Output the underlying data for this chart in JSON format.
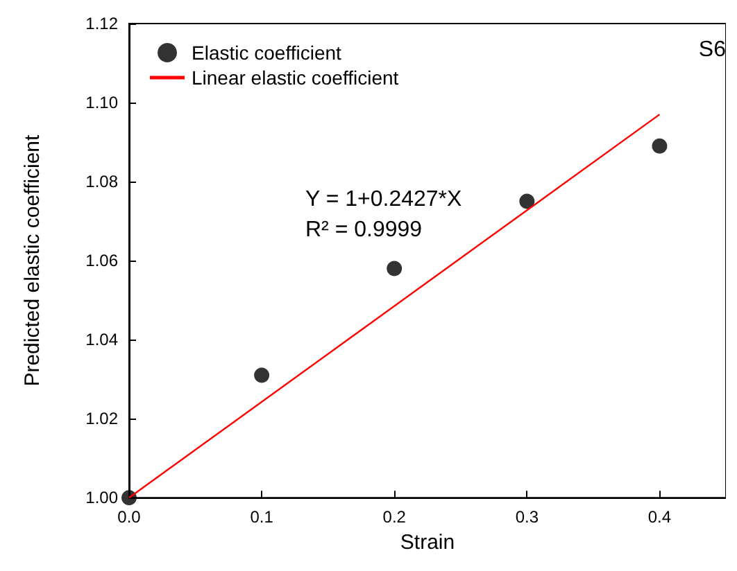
{
  "chart_data": {
    "type": "scatter",
    "xlabel": "Strain",
    "ylabel": "Predicted elastic coefficient",
    "series": [
      {
        "name": "Elastic coefficient",
        "marker": "circle",
        "color": "#000000",
        "x": [
          0,
          0.1,
          0.2,
          0.3,
          0.4
        ],
        "values": [
          1.0,
          1.031,
          1.058,
          1.075,
          1.089
        ]
      },
      {
        "name": "Linear elastic coefficient",
        "type": "line",
        "color": "#ff0000",
        "x": [
          0,
          0.4
        ],
        "values": [
          1.0,
          1.097
        ]
      }
    ],
    "xlim": [
      0,
      0.45
    ],
    "xticks": [
      {
        "value": 0,
        "label": "0.0"
      },
      0.1,
      0.2,
      0.3,
      0.4
    ],
    "ylim": [
      1.0,
      1.12
    ],
    "yticks": [
      {
        "value": 1.0,
        "label": "1.00"
      },
      1.02,
      1.04,
      1.06,
      1.08,
      {
        "value": 1.1,
        "label": "1.10"
      },
      1.12
    ],
    "annotations": [
      "Y = 1+0.2427*X",
      "R² = 0.9999",
      "S6"
    ],
    "legend": "top left",
    "grid": false
  }
}
